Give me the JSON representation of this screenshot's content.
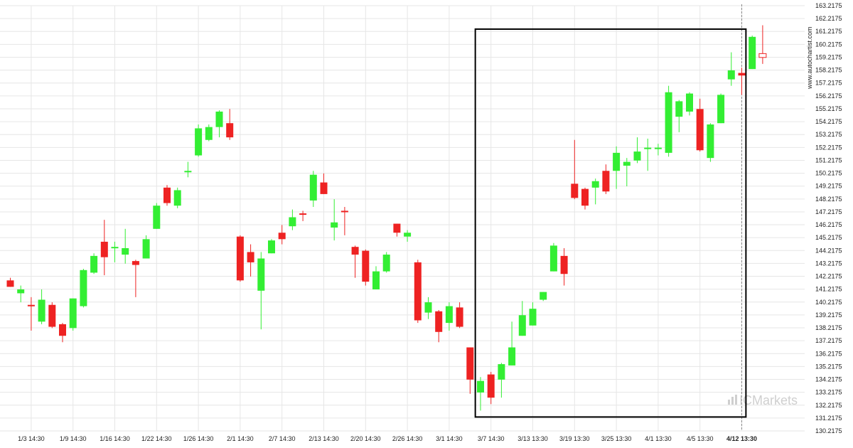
{
  "chart_data": {
    "type": "candlestick",
    "title": "",
    "xlabel": "",
    "ylabel": "",
    "ylim": [
      130.2175,
      163.2175
    ],
    "grid": true,
    "y_ticks": [
      "163.2175",
      "162.2175",
      "161.2175",
      "160.2175",
      "159.2175",
      "158.2175",
      "157.2175",
      "156.2175",
      "155.2175",
      "154.2175",
      "153.2175",
      "152.2175",
      "151.2175",
      "150.2175",
      "149.2175",
      "148.2175",
      "147.2175",
      "146.2175",
      "145.2175",
      "144.2175",
      "143.2175",
      "142.2175",
      "141.2175",
      "140.2175",
      "139.2175",
      "138.2175",
      "137.2175",
      "136.2175",
      "135.2175",
      "134.2175",
      "133.2175",
      "132.2175",
      "131.2175",
      "130.2175"
    ],
    "x_ticks": [
      {
        "label": "1/3 14:30",
        "index": 2
      },
      {
        "label": "1/9 14:30",
        "index": 6
      },
      {
        "label": "1/16 14:30",
        "index": 10
      },
      {
        "label": "1/22 14:30",
        "index": 14
      },
      {
        "label": "1/26 14:30",
        "index": 18
      },
      {
        "label": "2/1 14:30",
        "index": 22
      },
      {
        "label": "2/7 14:30",
        "index": 26
      },
      {
        "label": "2/13 14:30",
        "index": 30
      },
      {
        "label": "2/20 14:30",
        "index": 34
      },
      {
        "label": "2/26 14:30",
        "index": 38
      },
      {
        "label": "3/1 14:30",
        "index": 42
      },
      {
        "label": "3/7 14:30",
        "index": 46
      },
      {
        "label": "3/13 13:30",
        "index": 50
      },
      {
        "label": "3/19 13:30",
        "index": 54
      },
      {
        "label": "3/25 13:30",
        "index": 58
      },
      {
        "label": "4/1 13:30",
        "index": 62
      },
      {
        "label": "4/5 13:30",
        "index": 66
      },
      {
        "label": "4/12 13:30",
        "index": 70,
        "bold": true
      }
    ],
    "candles": [
      {
        "o": 141.9,
        "h": 142.1,
        "l": 141.4,
        "c": 141.4
      },
      {
        "o": 140.9,
        "h": 141.5,
        "l": 140.2,
        "c": 141.2
      },
      {
        "o": 140.0,
        "h": 140.6,
        "l": 138.0,
        "c": 139.9
      },
      {
        "o": 138.7,
        "h": 141.2,
        "l": 138.5,
        "c": 140.4
      },
      {
        "o": 140.0,
        "h": 140.2,
        "l": 138.2,
        "c": 138.3
      },
      {
        "o": 138.5,
        "h": 138.6,
        "l": 137.1,
        "c": 137.6
      },
      {
        "o": 138.2,
        "h": 140.5,
        "l": 138.0,
        "c": 140.5
      },
      {
        "o": 139.9,
        "h": 142.8,
        "l": 139.8,
        "c": 142.7
      },
      {
        "o": 142.5,
        "h": 144.0,
        "l": 142.4,
        "c": 143.8
      },
      {
        "o": 144.9,
        "h": 146.6,
        "l": 142.3,
        "c": 143.7
      },
      {
        "o": 144.5,
        "h": 144.9,
        "l": 143.3,
        "c": 144.5
      },
      {
        "o": 143.9,
        "h": 145.9,
        "l": 143.2,
        "c": 144.4
      },
      {
        "o": 143.4,
        "h": 143.5,
        "l": 140.6,
        "c": 143.1
      },
      {
        "o": 143.6,
        "h": 145.4,
        "l": 143.6,
        "c": 145.1
      },
      {
        "o": 145.9,
        "h": 147.9,
        "l": 145.9,
        "c": 147.7
      },
      {
        "o": 149.1,
        "h": 149.3,
        "l": 147.7,
        "c": 147.9
      },
      {
        "o": 147.7,
        "h": 149.1,
        "l": 147.5,
        "c": 148.9
      },
      {
        "o": 150.4,
        "h": 151.1,
        "l": 149.9,
        "c": 150.4
      },
      {
        "o": 151.6,
        "h": 154.0,
        "l": 151.5,
        "c": 153.7
      },
      {
        "o": 152.8,
        "h": 154.0,
        "l": 152.7,
        "c": 153.8
      },
      {
        "o": 153.8,
        "h": 155.1,
        "l": 153.0,
        "c": 155.0
      },
      {
        "o": 154.1,
        "h": 155.2,
        "l": 152.8,
        "c": 153.0
      },
      {
        "o": 145.3,
        "h": 145.4,
        "l": 141.8,
        "c": 141.9
      },
      {
        "o": 144.1,
        "h": 144.7,
        "l": 142.2,
        "c": 143.3
      },
      {
        "o": 141.1,
        "h": 144.1,
        "l": 138.1,
        "c": 143.6
      },
      {
        "o": 144.0,
        "h": 145.1,
        "l": 144.0,
        "c": 145.0
      },
      {
        "o": 145.6,
        "h": 146.2,
        "l": 144.7,
        "c": 145.1
      },
      {
        "o": 146.1,
        "h": 147.4,
        "l": 145.8,
        "c": 146.8
      },
      {
        "o": 147.1,
        "h": 147.3,
        "l": 146.5,
        "c": 147.0
      },
      {
        "o": 148.1,
        "h": 150.4,
        "l": 147.6,
        "c": 150.1
      },
      {
        "o": 149.5,
        "h": 150.2,
        "l": 148.6,
        "c": 148.6
      },
      {
        "o": 146.0,
        "h": 148.2,
        "l": 145.0,
        "c": 146.4
      },
      {
        "o": 147.3,
        "h": 147.6,
        "l": 145.4,
        "c": 147.2
      },
      {
        "o": 144.5,
        "h": 144.6,
        "l": 142.1,
        "c": 143.9
      },
      {
        "o": 144.2,
        "h": 144.3,
        "l": 141.5,
        "c": 141.8
      },
      {
        "o": 141.2,
        "h": 143.0,
        "l": 141.2,
        "c": 142.6
      },
      {
        "o": 142.6,
        "h": 144.1,
        "l": 142.5,
        "c": 143.9
      },
      {
        "o": 146.3,
        "h": 146.3,
        "l": 145.3,
        "c": 145.6
      },
      {
        "o": 145.3,
        "h": 145.8,
        "l": 144.9,
        "c": 145.6
      },
      {
        "o": 143.3,
        "h": 143.5,
        "l": 138.6,
        "c": 138.8
      },
      {
        "o": 139.4,
        "h": 140.6,
        "l": 138.9,
        "c": 140.2
      },
      {
        "o": 139.5,
        "h": 139.6,
        "l": 137.1,
        "c": 137.9
      },
      {
        "o": 138.6,
        "h": 140.2,
        "l": 138.0,
        "c": 139.9
      },
      {
        "o": 139.8,
        "h": 140.2,
        "l": 138.2,
        "c": 138.3
      },
      {
        "o": 136.7,
        "h": 136.7,
        "l": 133.1,
        "c": 134.2
      },
      {
        "o": 133.2,
        "h": 134.4,
        "l": 131.8,
        "c": 134.1
      },
      {
        "o": 134.6,
        "h": 134.8,
        "l": 132.3,
        "c": 132.8
      },
      {
        "o": 134.2,
        "h": 135.5,
        "l": 132.8,
        "c": 135.4
      },
      {
        "o": 135.3,
        "h": 138.7,
        "l": 135.3,
        "c": 136.7
      },
      {
        "o": 137.6,
        "h": 140.3,
        "l": 137.6,
        "c": 139.2
      },
      {
        "o": 138.4,
        "h": 140.2,
        "l": 138.4,
        "c": 139.7
      },
      {
        "o": 140.4,
        "h": 141.0,
        "l": 140.3,
        "c": 141.0
      },
      {
        "o": 142.6,
        "h": 144.8,
        "l": 142.6,
        "c": 144.6
      },
      {
        "o": 143.8,
        "h": 144.4,
        "l": 141.5,
        "c": 142.4
      },
      {
        "o": 149.4,
        "h": 152.8,
        "l": 148.2,
        "c": 148.3
      },
      {
        "o": 149.0,
        "h": 149.1,
        "l": 147.4,
        "c": 147.7
      },
      {
        "o": 149.1,
        "h": 149.8,
        "l": 147.8,
        "c": 149.6
      },
      {
        "o": 150.4,
        "h": 150.9,
        "l": 148.6,
        "c": 148.8
      },
      {
        "o": 150.4,
        "h": 152.3,
        "l": 149.0,
        "c": 151.8
      },
      {
        "o": 150.8,
        "h": 151.4,
        "l": 149.2,
        "c": 151.1
      },
      {
        "o": 151.2,
        "h": 153.0,
        "l": 151.0,
        "c": 151.9
      },
      {
        "o": 152.2,
        "h": 152.9,
        "l": 150.4,
        "c": 152.2
      },
      {
        "o": 152.1,
        "h": 152.5,
        "l": 151.6,
        "c": 152.2
      },
      {
        "o": 151.8,
        "h": 157.0,
        "l": 151.5,
        "c": 156.5
      },
      {
        "o": 154.6,
        "h": 155.9,
        "l": 153.4,
        "c": 155.8
      },
      {
        "o": 155.0,
        "h": 156.5,
        "l": 154.7,
        "c": 156.4
      },
      {
        "o": 155.2,
        "h": 156.0,
        "l": 151.9,
        "c": 152.0
      },
      {
        "o": 151.4,
        "h": 154.1,
        "l": 151.1,
        "c": 154.0
      },
      {
        "o": 154.1,
        "h": 156.4,
        "l": 154.1,
        "c": 156.3
      },
      {
        "o": 157.5,
        "h": 159.6,
        "l": 157.0,
        "c": 158.2
      },
      {
        "o": 158.0,
        "h": 158.4,
        "l": 156.3,
        "c": 157.8
      },
      {
        "o": 158.3,
        "h": 160.9,
        "l": 158.3,
        "c": 160.8
      },
      {
        "o": 159.5,
        "h": 161.7,
        "l": 158.7,
        "c": 159.2
      }
    ],
    "highlight_box": {
      "start_index": 44.5,
      "end_index": 70.4,
      "y_top": 161.4,
      "y_bottom": 131.3
    },
    "vline_index": 70
  },
  "colors": {
    "up": "#33ee33",
    "down": "#ee2222",
    "grid": "#e6e6e6",
    "axis_text": "#222222",
    "box": "#000000",
    "last_candle_fill": "#ffffff"
  },
  "side_label": "www.autochartist.com",
  "logo": {
    "text": "ICMarkets",
    "icon": "bar-chart-icon"
  }
}
